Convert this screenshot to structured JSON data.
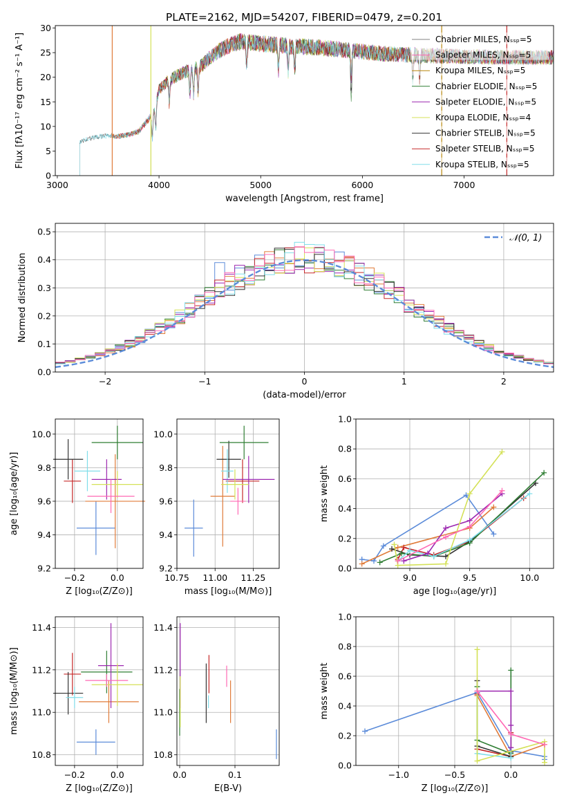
{
  "figure_title": "PLATE=2162, MJD=54207, FIBERID=0479, z=0.201",
  "series_colors": [
    "#808080",
    "#ff69b4",
    "#b8860b",
    "#2e7d32",
    "#9c27b0",
    "#d4e157",
    "#333333",
    "#c62828",
    "#80deea"
  ],
  "highlight_colors": {
    "blue": "#5b8bd9",
    "orange": "#e07b39"
  },
  "chart_data": [
    {
      "name": "spectrum",
      "type": "line",
      "xlabel": "wavelength [Angstrom, rest frame]",
      "ylabel": "Flux [fλ10⁻¹⁷ erg cm⁻² s⁻¹ A⁻¹]",
      "xlim": [
        2980,
        7880
      ],
      "ylim": [
        0,
        30.5
      ],
      "xticks": [
        3000,
        4000,
        5000,
        6000,
        7000
      ],
      "yticks": [
        0,
        5,
        10,
        15,
        20,
        25,
        30
      ],
      "legend_position": "right",
      "series": [
        {
          "name": "Chabrier MILES, Nₛₛₚ=5",
          "start": 3540
        },
        {
          "name": "Salpeter MILES, Nₛₛₚ=5",
          "start": 3540
        },
        {
          "name": "Kroupa MILES, Nₛₛₚ=5",
          "start": 3540
        },
        {
          "name": "Chabrier ELODIE, Nₛₛₚ=5",
          "start": 3920
        },
        {
          "name": "Salpeter ELODIE, Nₛₛₚ=5",
          "start": 3920
        },
        {
          "name": "Kroupa ELODIE, Nₛₛₚ=4",
          "start": 3920
        },
        {
          "name": "Chabrier STELIB, Nₛₛₚ=5",
          "start": 3220
        },
        {
          "name": "Salpeter STELIB, Nₛₛₚ=5",
          "start": 3540
        },
        {
          "name": "Kroupa STELIB, Nₛₛₚ=5",
          "start": 3220
        }
      ],
      "continuum": {
        "x": [
          3220,
          3300,
          3400,
          3500,
          3600,
          3700,
          3800,
          3900,
          3950,
          4000,
          4100,
          4200,
          4300,
          4400,
          4500,
          4600,
          4700,
          4800,
          4900,
          5000,
          5200,
          5400,
          5600,
          5800,
          6000,
          6200,
          6400,
          6600,
          6800,
          7000,
          7200,
          7400,
          7600,
          7880
        ],
        "y": [
          6.8,
          7.5,
          7.9,
          8.1,
          8.0,
          8.3,
          9.0,
          11.5,
          13.0,
          17.5,
          19.5,
          20.5,
          21.5,
          22.0,
          24.0,
          25.5,
          26.5,
          27.3,
          27.0,
          26.8,
          26.5,
          26.2,
          26.0,
          25.6,
          25.2,
          24.8,
          24.6,
          24.4,
          24.3,
          24.2,
          24.1,
          24.0,
          24.0,
          24.0
        ]
      },
      "vertical_lines": [
        {
          "x": 3540,
          "color": "#e07b39"
        },
        {
          "x": 3920,
          "color": "#d4e157"
        },
        {
          "x": 6780,
          "color": "#b8860b"
        },
        {
          "x": 7420,
          "color": "#c62828"
        }
      ]
    },
    {
      "name": "residuals",
      "type": "histogram",
      "xlabel": "(data-model)/error",
      "ylabel": "Normed distribution",
      "xlim": [
        -2.5,
        2.5
      ],
      "ylim": [
        0,
        0.53
      ],
      "xticks": [
        -2,
        -1,
        0,
        1,
        2
      ],
      "yticks": [
        0.0,
        0.1,
        0.2,
        0.3,
        0.4,
        0.5
      ],
      "grid": true,
      "legend": "𝒩(0, 1)",
      "legend_position": "top-right",
      "bin_width": 0.1,
      "gaussian": {
        "mu": 0,
        "sigma": 1
      }
    },
    {
      "name": "age_vs_Z",
      "type": "errorbar",
      "xlabel": "Z [log₁₀(Z/Z⊙)]",
      "ylabel": "age  [log₁₀(age/yr)]",
      "xlim": [
        -0.29,
        0.12
      ],
      "ylim": [
        9.2,
        10.09
      ],
      "xticks": [
        -0.2,
        0.0
      ],
      "xticklabels": [
        "−0.2",
        "0.0"
      ],
      "yticks": [
        9.2,
        9.4,
        9.6,
        9.8,
        10.0
      ],
      "grid": true,
      "points": [
        {
          "x": -0.1,
          "y": 9.44,
          "xerr": 0.09,
          "yerr": 0.16,
          "color": "#5b8bd9"
        },
        {
          "x": -0.01,
          "y": 9.6,
          "xerr": 0.14,
          "yerr": 0.28,
          "color": "#e07b39"
        },
        {
          "x": -0.21,
          "y": 9.72,
          "xerr": 0.04,
          "yerr": 0.13,
          "color": "#c62828"
        },
        {
          "x": -0.23,
          "y": 9.85,
          "xerr": 0.07,
          "yerr": 0.12,
          "color": "#333333"
        },
        {
          "x": 0.0,
          "y": 9.95,
          "xerr": 0.12,
          "yerr": 0.1,
          "color": "#2e7d32"
        },
        {
          "x": -0.14,
          "y": 9.78,
          "xerr": 0.06,
          "yerr": 0.12,
          "color": "#80deea"
        },
        {
          "x": -0.05,
          "y": 9.73,
          "xerr": 0.07,
          "yerr": 0.12,
          "color": "#9c27b0"
        },
        {
          "x": 0.0,
          "y": 9.7,
          "xerr": 0.12,
          "yerr": 0.08,
          "color": "#d4e157"
        },
        {
          "x": -0.03,
          "y": 9.63,
          "xerr": 0.11,
          "yerr": 0.1,
          "color": "#ff69b4"
        }
      ]
    },
    {
      "name": "age_vs_mass",
      "type": "errorbar",
      "xlabel": "mass [log₁₀(M/M⊙)]",
      "xlim": [
        10.75,
        11.42
      ],
      "ylim": [
        9.2,
        10.09
      ],
      "xticks": [
        10.75,
        11.0,
        11.25
      ],
      "xticklabels": [
        "10.75",
        "11.00",
        "11.25"
      ],
      "yticks": [
        9.2,
        9.4,
        9.6,
        9.8,
        10.0
      ],
      "grid": true,
      "points": [
        {
          "x": 10.86,
          "y": 9.44,
          "xerr": 0.06,
          "yerr": 0.17,
          "color": "#5b8bd9"
        },
        {
          "x": 11.05,
          "y": 9.63,
          "xerr": 0.08,
          "yerr": 0.3,
          "color": "#e07b39"
        },
        {
          "x": 11.18,
          "y": 9.72,
          "xerr": 0.11,
          "yerr": 0.13,
          "color": "#c62828"
        },
        {
          "x": 11.09,
          "y": 9.85,
          "xerr": 0.08,
          "yerr": 0.11,
          "color": "#333333"
        },
        {
          "x": 11.19,
          "y": 9.95,
          "xerr": 0.16,
          "yerr": 0.1,
          "color": "#2e7d32"
        },
        {
          "x": 11.08,
          "y": 9.78,
          "xerr": 0.04,
          "yerr": 0.13,
          "color": "#80deea"
        },
        {
          "x": 11.22,
          "y": 9.73,
          "xerr": 0.17,
          "yerr": 0.14,
          "color": "#9c27b0"
        },
        {
          "x": 11.13,
          "y": 9.7,
          "xerr": 0.09,
          "yerr": 0.09,
          "color": "#d4e157"
        },
        {
          "x": 11.15,
          "y": 9.6,
          "xerr": 0.05,
          "yerr": 0.08,
          "color": "#ff69b4"
        }
      ]
    },
    {
      "name": "mass_weight_vs_age",
      "type": "line",
      "xlabel": "age  [log₁₀(age/yr)]",
      "ylabel": "mass weight",
      "xlim": [
        8.55,
        10.2
      ],
      "ylim": [
        0,
        1.0
      ],
      "xticks": [
        9.0,
        9.5,
        10.0
      ],
      "xticklabels": [
        "9.0",
        "9.5",
        "10.0"
      ],
      "yticks": [
        0.0,
        0.2,
        0.4,
        0.6,
        0.8,
        1.0
      ],
      "grid": true,
      "series": [
        {
          "color": "#5b8bd9",
          "x": [
            8.6,
            8.7,
            8.78,
            9.47,
            9.7
          ],
          "y": [
            0.06,
            0.05,
            0.15,
            0.49,
            0.23
          ]
        },
        {
          "color": "#e07b39",
          "x": [
            8.6,
            8.9,
            9.5,
            9.7
          ],
          "y": [
            0.03,
            0.14,
            0.27,
            0.41
          ]
        },
        {
          "color": "#c62828",
          "x": [
            8.9,
            8.95,
            9.2,
            9.5,
            9.95
          ],
          "y": [
            0.06,
            0.14,
            0.09,
            0.18,
            0.47
          ]
        },
        {
          "color": "#333333",
          "x": [
            8.85,
            9.0,
            9.3,
            9.5,
            10.05
          ],
          "y": [
            0.13,
            0.09,
            0.08,
            0.18,
            0.57
          ]
        },
        {
          "color": "#2e7d32",
          "x": [
            8.75,
            8.93,
            9.2,
            9.5,
            10.12
          ],
          "y": [
            0.04,
            0.1,
            0.08,
            0.17,
            0.64
          ]
        },
        {
          "color": "#80deea",
          "x": [
            8.9,
            9.0,
            9.2,
            9.5,
            10.0
          ],
          "y": [
            0.05,
            0.12,
            0.08,
            0.19,
            0.5
          ]
        },
        {
          "color": "#9c27b0",
          "x": [
            8.95,
            9.15,
            9.3,
            9.5,
            9.77
          ],
          "y": [
            0.05,
            0.1,
            0.27,
            0.32,
            0.5
          ]
        },
        {
          "color": "#d4e157",
          "x": [
            8.87,
            8.9,
            9.3,
            9.5,
            9.77
          ],
          "y": [
            0.16,
            0.02,
            0.03,
            0.5,
            0.78
          ]
        },
        {
          "color": "#ff69b4",
          "x": [
            8.9,
            9.3,
            9.5,
            9.77
          ],
          "y": [
            0.05,
            0.21,
            0.28,
            0.52
          ]
        }
      ]
    },
    {
      "name": "mass_vs_Z",
      "type": "errorbar",
      "xlabel": "Z [log₁₀(Z/Z⊙)]",
      "ylabel": "mass [log₁₀(M/M⊙)]",
      "xlim": [
        -0.29,
        0.12
      ],
      "ylim": [
        10.75,
        11.45
      ],
      "xticks": [
        -0.2,
        0.0
      ],
      "xticklabels": [
        "−0.2",
        "0.0"
      ],
      "yticks": [
        10.8,
        11.0,
        11.2,
        11.4
      ],
      "grid": true,
      "points": [
        {
          "x": -0.1,
          "y": 10.86,
          "xerr": 0.09,
          "yerr": 0.06,
          "color": "#5b8bd9"
        },
        {
          "x": -0.04,
          "y": 11.05,
          "xerr": 0.14,
          "yerr": 0.1,
          "color": "#e07b39"
        },
        {
          "x": -0.21,
          "y": 11.18,
          "xerr": 0.04,
          "yerr": 0.1,
          "color": "#c62828"
        },
        {
          "x": -0.23,
          "y": 11.09,
          "xerr": 0.07,
          "yerr": 0.1,
          "color": "#333333"
        },
        {
          "x": -0.05,
          "y": 11.19,
          "xerr": 0.12,
          "yerr": 0.1,
          "color": "#2e7d32"
        },
        {
          "x": -0.2,
          "y": 11.07,
          "xerr": 0.04,
          "yerr": 0.05,
          "color": "#80deea"
        },
        {
          "x": -0.03,
          "y": 11.22,
          "xerr": 0.06,
          "yerr": 0.2,
          "color": "#9c27b0"
        },
        {
          "x": 0.0,
          "y": 11.13,
          "xerr": 0.12,
          "yerr": 0.1,
          "color": "#d4e157"
        },
        {
          "x": -0.05,
          "y": 11.15,
          "xerr": 0.1,
          "yerr": 0.03,
          "color": "#ff69b4"
        }
      ]
    },
    {
      "name": "mass_vs_ebv",
      "type": "errorbar",
      "xlabel": "E(B-V)",
      "xlim": [
        -0.005,
        0.18
      ],
      "ylim": [
        10.75,
        11.45
      ],
      "xticks": [
        0.0,
        0.1
      ],
      "xticklabels": [
        "0.0",
        "0.1"
      ],
      "yticks": [
        10.8,
        11.0,
        11.2,
        11.4
      ],
      "grid": true,
      "points": [
        {
          "x": 0.175,
          "y": 10.85,
          "xerr": 0.0,
          "yerr": 0.07,
          "color": "#5b8bd9"
        },
        {
          "x": 0.092,
          "y": 11.05,
          "xerr": 0.0,
          "yerr": 0.1,
          "color": "#e07b39"
        },
        {
          "x": 0.053,
          "y": 11.18,
          "xerr": 0.0,
          "yerr": 0.09,
          "color": "#c62828"
        },
        {
          "x": 0.048,
          "y": 11.09,
          "xerr": 0.0,
          "yerr": 0.14,
          "color": "#333333"
        },
        {
          "x": 0.0,
          "y": 11.0,
          "xerr": 0.0,
          "yerr": 0.11,
          "color": "#2e7d32"
        },
        {
          "x": 0.052,
          "y": 11.05,
          "xerr": 0.0,
          "yerr": 0.03,
          "color": "#80deea"
        },
        {
          "x": 0.001,
          "y": 11.22,
          "xerr": 0.0,
          "yerr": 0.2,
          "color": "#9c27b0"
        },
        {
          "x": 0.001,
          "y": 11.05,
          "xerr": 0.0,
          "yerr": 0.12,
          "color": "#d4e157"
        },
        {
          "x": 0.085,
          "y": 11.17,
          "xerr": 0.0,
          "yerr": 0.05,
          "color": "#ff69b4"
        }
      ]
    },
    {
      "name": "mass_weight_vs_Z",
      "type": "line",
      "xlabel": "Z [log₁₀(Z/Z⊙)]",
      "ylabel": "mass weight",
      "xlim": [
        -1.38,
        0.38
      ],
      "ylim": [
        0,
        1.0
      ],
      "xticks": [
        -1.0,
        -0.5,
        0.0
      ],
      "xticklabels": [
        "−1.0",
        "−0.5",
        "0.0"
      ],
      "yticks": [
        0.0,
        0.2,
        0.4,
        0.6,
        0.8,
        1.0
      ],
      "grid": true,
      "series": [
        {
          "color": "#5b8bd9",
          "x": [
            -1.3,
            -0.3,
            0.0,
            0.3,
            0.3
          ],
          "y": [
            0.23,
            0.49,
            0.1,
            0.06,
            0.04
          ]
        },
        {
          "color": "#e07b39",
          "x": [
            -0.3,
            0.0,
            0.3
          ],
          "y": [
            0.47,
            0.06,
            0.14
          ]
        },
        {
          "color": "#c62828",
          "x": [
            -0.3,
            -0.3,
            0.0,
            0.0
          ],
          "y": [
            0.48,
            0.11,
            0.06,
            0.22
          ]
        },
        {
          "color": "#333333",
          "x": [
            -0.3,
            -0.3,
            0.0,
            0.0
          ],
          "y": [
            0.57,
            0.13,
            0.06,
            0.09
          ]
        },
        {
          "color": "#2e7d32",
          "x": [
            -0.3,
            -0.3,
            0.0,
            0.0
          ],
          "y": [
            0.53,
            0.17,
            0.08,
            0.64
          ]
        },
        {
          "color": "#80deea",
          "x": [
            -0.3,
            -0.3,
            0.0,
            0.0
          ],
          "y": [
            0.5,
            0.08,
            0.05,
            0.12
          ]
        },
        {
          "color": "#9c27b0",
          "x": [
            -0.3,
            0.0,
            0.0,
            0.0
          ],
          "y": [
            0.5,
            0.5,
            0.27,
            0.12
          ]
        },
        {
          "color": "#d4e157",
          "x": [
            -0.3,
            -0.3,
            0.3,
            0.3
          ],
          "y": [
            0.78,
            0.03,
            0.16,
            0.02
          ]
        },
        {
          "color": "#ff69b4",
          "x": [
            -0.3,
            0.0,
            0.3
          ],
          "y": [
            0.5,
            0.21,
            0.14
          ]
        }
      ]
    }
  ]
}
